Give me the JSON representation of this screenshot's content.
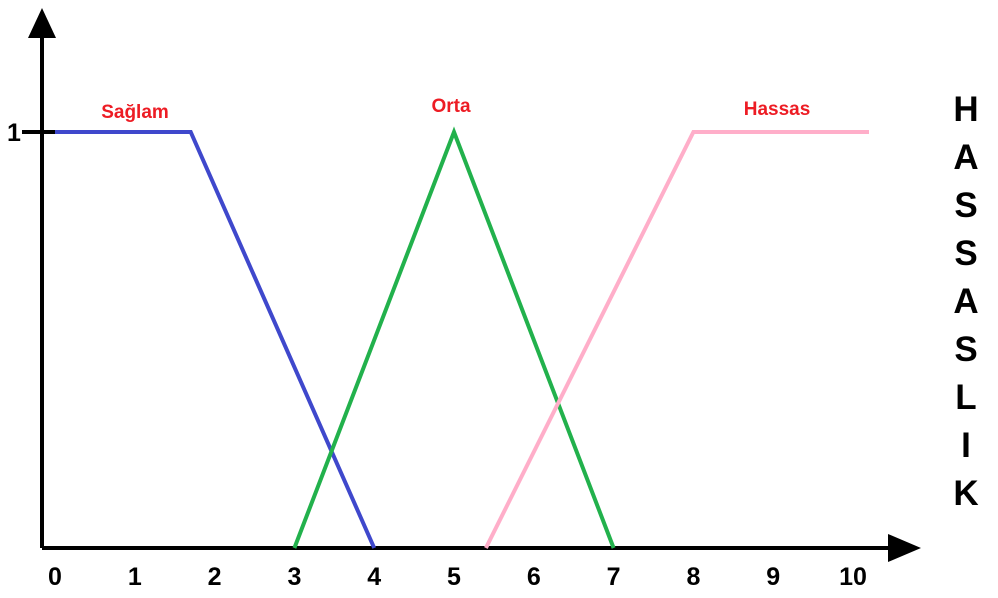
{
  "chart_data": {
    "type": "line",
    "xlim": [
      0,
      10
    ],
    "ylim": [
      0,
      1
    ],
    "x_ticks": [
      "0",
      "1",
      "2",
      "3",
      "4",
      "5",
      "6",
      "7",
      "8",
      "9",
      "10"
    ],
    "y_ticks": [
      "1"
    ],
    "side_label": "HASSASLIK",
    "series": [
      {
        "name": "Sağlam",
        "color": "#3f48cc",
        "x": [
          0,
          1.7,
          4
        ],
        "y": [
          1,
          1,
          0
        ]
      },
      {
        "name": "Orta",
        "color": "#22b14c",
        "x": [
          3,
          5,
          7
        ],
        "y": [
          0,
          1,
          0
        ]
      },
      {
        "name": "Hassas",
        "color": "#ffaec9",
        "x": [
          5.4,
          8,
          10.2
        ],
        "y": [
          0,
          1,
          1
        ]
      }
    ],
    "label_color": "#ed1c24"
  }
}
